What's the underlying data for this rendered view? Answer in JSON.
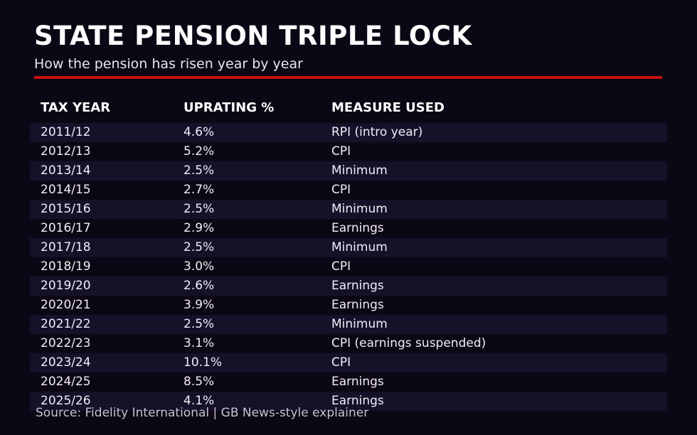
{
  "page": {
    "title": "STATE PENSION TRIPLE LOCK",
    "subtitle": "How the pension has risen year by year",
    "source": "Source: Fidelity International | GB News-style explainer"
  },
  "colors": {
    "background": "#0c0714",
    "row_alt": "#161129",
    "accent_red": "#c81112",
    "title_text": "#ffffff",
    "subtitle_text": "#e8e5ee",
    "header_text": "#ffffff",
    "row_text": "#f1edf6",
    "source_text": "#c7c3cd"
  },
  "table": {
    "columns": [
      "TAX YEAR",
      "UPRATING %",
      "MEASURE USED"
    ],
    "rows": [
      {
        "year": "2011/12",
        "uprating": "4.6%",
        "measure": "RPI (intro year)"
      },
      {
        "year": "2012/13",
        "uprating": "5.2%",
        "measure": "CPI"
      },
      {
        "year": "2013/14",
        "uprating": "2.5%",
        "measure": "Minimum"
      },
      {
        "year": "2014/15",
        "uprating": "2.7%",
        "measure": "CPI"
      },
      {
        "year": "2015/16",
        "uprating": "2.5%",
        "measure": "Minimum"
      },
      {
        "year": "2016/17",
        "uprating": "2.9%",
        "measure": "Earnings"
      },
      {
        "year": "2017/18",
        "uprating": "2.5%",
        "measure": "Minimum"
      },
      {
        "year": "2018/19",
        "uprating": "3.0%",
        "measure": "CPI"
      },
      {
        "year": "2019/20",
        "uprating": "2.6%",
        "measure": "Earnings"
      },
      {
        "year": "2020/21",
        "uprating": "3.9%",
        "measure": "Earnings"
      },
      {
        "year": "2021/22",
        "uprating": "2.5%",
        "measure": "Minimum"
      },
      {
        "year": "2022/23",
        "uprating": "3.1%",
        "measure": "CPI (earnings suspended)"
      },
      {
        "year": "2023/24",
        "uprating": "10.1%",
        "measure": "CPI"
      },
      {
        "year": "2024/25",
        "uprating": "8.5%",
        "measure": "Earnings"
      },
      {
        "year": "2025/26",
        "uprating": "4.1%",
        "measure": "Earnings"
      }
    ]
  },
  "chart_data": {
    "type": "table",
    "title": "STATE PENSION TRIPLE LOCK",
    "subtitle": "How the pension has risen year by year",
    "columns": [
      "TAX YEAR",
      "UPRATING %",
      "MEASURE USED"
    ],
    "categories": [
      "2011/12",
      "2012/13",
      "2013/14",
      "2014/15",
      "2015/16",
      "2016/17",
      "2017/18",
      "2018/19",
      "2019/20",
      "2020/21",
      "2021/22",
      "2022/23",
      "2023/24",
      "2024/25",
      "2025/26"
    ],
    "values": [
      4.6,
      5.2,
      2.5,
      2.7,
      2.5,
      2.9,
      2.5,
      3.0,
      2.6,
      3.9,
      2.5,
      3.1,
      10.1,
      8.5,
      4.1
    ],
    "measures": [
      "RPI (intro year)",
      "CPI",
      "Minimum",
      "CPI",
      "Minimum",
      "Earnings",
      "Minimum",
      "CPI",
      "Earnings",
      "Earnings",
      "Minimum",
      "CPI (earnings suspended)",
      "CPI",
      "Earnings",
      "Earnings"
    ],
    "source": "Source: Fidelity International | GB News-style explainer",
    "layout": {
      "alternating_rows": true,
      "first_row_shaded": true
    }
  }
}
